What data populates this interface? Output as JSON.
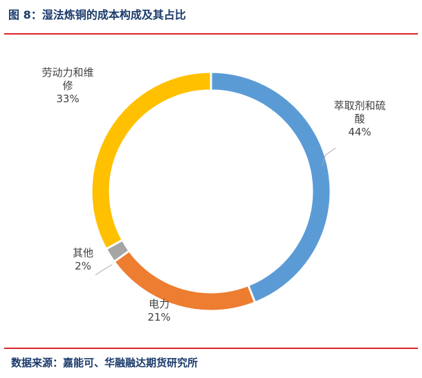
{
  "header": {
    "title": "图 8：湿法炼铜的成本构成及其占比"
  },
  "footer": {
    "source": "数据来源：嘉能可、华融融达期货研究所"
  },
  "chart_data": {
    "type": "pie",
    "variant": "donut",
    "title": "",
    "slices": [
      {
        "name": "萃取剂和硫酸",
        "label_lines": [
          "萃取剂和硫",
          "酸"
        ],
        "value": 44,
        "value_label": "44%",
        "color": "#5b9bd5"
      },
      {
        "name": "电力",
        "label_lines": [
          "电力"
        ],
        "value": 21,
        "value_label": "21%",
        "color": "#ed7d31"
      },
      {
        "name": "其他",
        "label_lines": [
          "其他"
        ],
        "value": 2,
        "value_label": "2%",
        "color": "#a5a5a5"
      },
      {
        "name": "劳动力和维修",
        "label_lines": [
          "劳动力和维",
          "修"
        ],
        "value": 33,
        "value_label": "33%",
        "color": "#ffc000"
      }
    ]
  }
}
